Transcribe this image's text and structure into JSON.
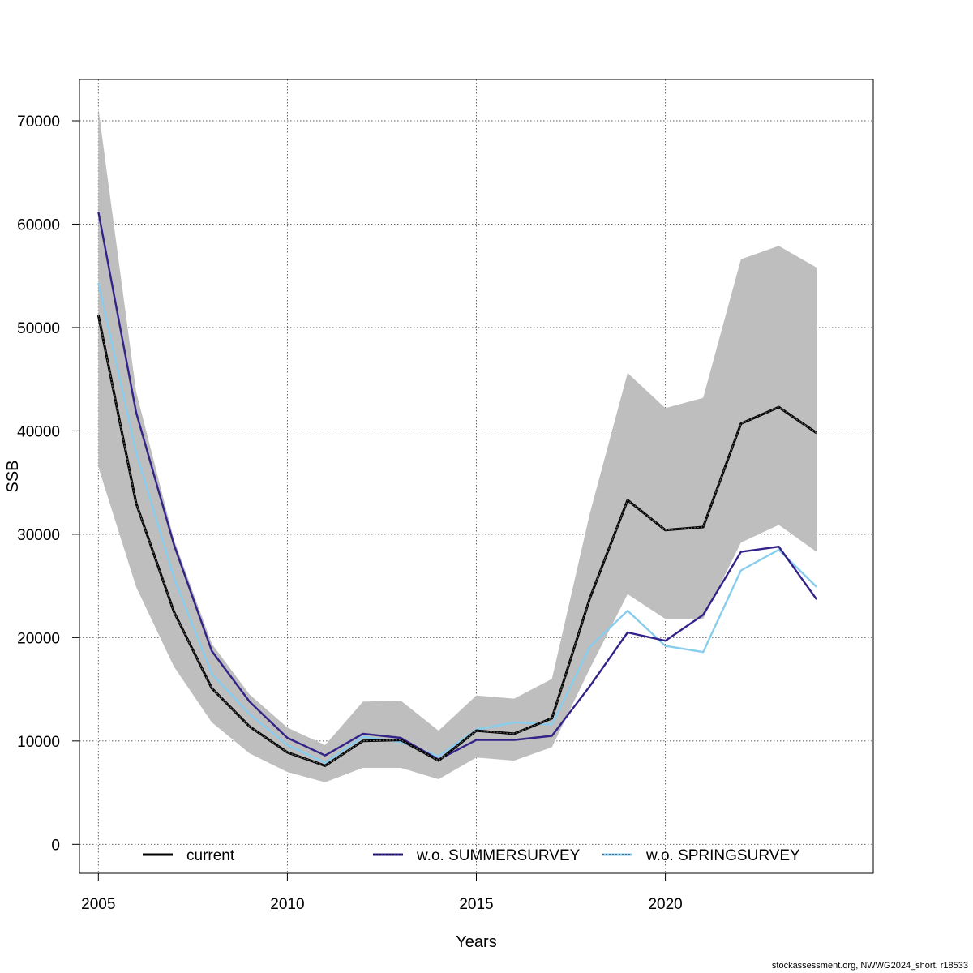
{
  "chart_data": {
    "type": "line",
    "xlabel": "Years",
    "ylabel": "SSB",
    "xlim": [
      2004.5,
      2025.5
    ],
    "ylim": [
      -2800,
      74000
    ],
    "xticks": [
      2005,
      2010,
      2015,
      2020
    ],
    "yticks": [
      0,
      10000,
      20000,
      30000,
      40000,
      50000,
      60000,
      70000
    ],
    "grid": true,
    "legend_position": "bottom",
    "x": [
      2005,
      2006,
      2007,
      2008,
      2009,
      2010,
      2011,
      2012,
      2013,
      2014,
      2015,
      2016,
      2017,
      2018,
      2019,
      2020,
      2021,
      2022,
      2023,
      2024
    ],
    "band": {
      "color": "#bebebe",
      "upper": [
        71200,
        43800,
        29500,
        19400,
        14500,
        11300,
        9600,
        13800,
        13900,
        11000,
        14400,
        14100,
        16000,
        32000,
        45600,
        42200,
        43200,
        56600,
        57900,
        55800
      ],
      "lower": [
        36500,
        24900,
        17200,
        11800,
        8800,
        7000,
        6000,
        7400,
        7400,
        6300,
        8400,
        8100,
        9400,
        17000,
        24200,
        21800,
        21800,
        29200,
        30900,
        28300
      ]
    },
    "series": [
      {
        "name": "current",
        "color": "#000000",
        "values": [
          51200,
          33000,
          22500,
          15100,
          11400,
          8900,
          7600,
          10000,
          10100,
          8100,
          11000,
          10700,
          12200,
          23800,
          33300,
          30400,
          30700,
          40700,
          42300,
          39800
        ]
      },
      {
        "name": "w.o. SUMMERSURVEY",
        "color": "#332288",
        "values": [
          61200,
          41800,
          29000,
          18700,
          13800,
          10300,
          8600,
          10700,
          10300,
          8200,
          10100,
          10100,
          10500,
          15300,
          20500,
          19700,
          22200,
          28300,
          28800,
          23700
        ]
      },
      {
        "name": "w.o. SPRINGSURVEY",
        "color": "#88ccee",
        "values": [
          54300,
          37900,
          25800,
          16500,
          12600,
          9600,
          7900,
          10400,
          9900,
          8500,
          11100,
          11800,
          11600,
          19100,
          22600,
          19200,
          18600,
          26500,
          28500,
          24900
        ]
      }
    ]
  },
  "credit": "stockassessment.org, NWWG2024_short, r18533"
}
